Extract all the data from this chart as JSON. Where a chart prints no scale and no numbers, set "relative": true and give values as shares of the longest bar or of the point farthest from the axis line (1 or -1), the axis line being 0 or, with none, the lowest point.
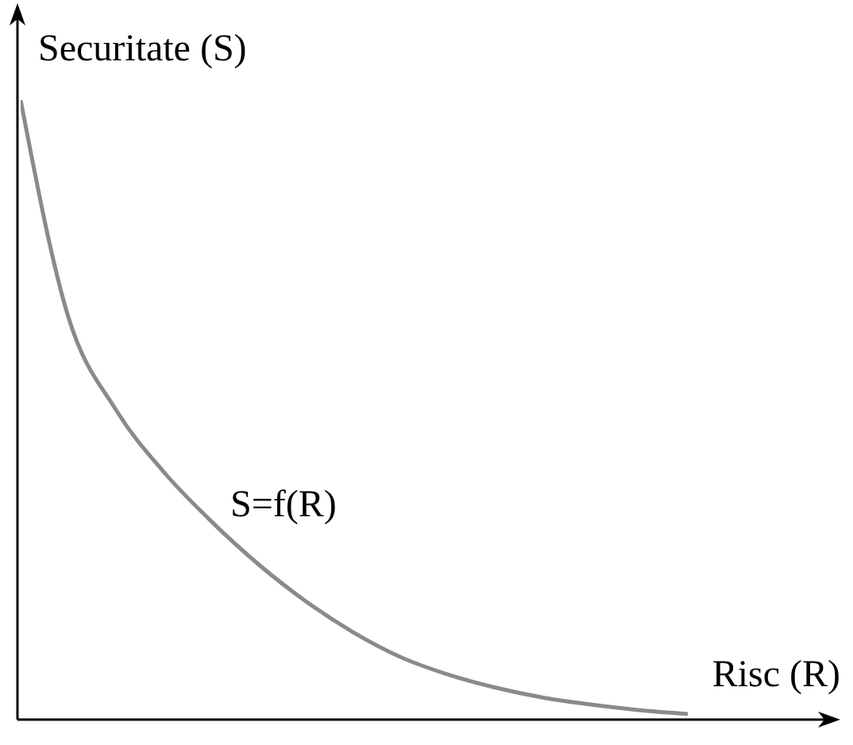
{
  "chart_data": {
    "type": "line",
    "relative": true,
    "xlabel": "Risc (R)",
    "ylabel": "Securitate (S)",
    "annotations": [
      "S=f(R)"
    ],
    "grid": false,
    "legend": false,
    "marker": "none",
    "line_style": "solid",
    "categories": [
      null,
      null,
      null,
      null,
      null,
      null,
      null,
      null,
      null,
      null,
      null,
      null,
      null,
      null,
      null,
      null,
      null,
      null
    ],
    "series": [
      {
        "color": "#8a8a8a",
        "values": [
          1,
          0.65,
          0.5,
          0.4,
          0.32,
          0.25,
          0.19,
          0.14,
          0.1,
          0.072,
          0.051,
          0.035,
          0.024,
          0.015,
          0.009,
          null,
          null,
          null
        ]
      }
    ]
  }
}
